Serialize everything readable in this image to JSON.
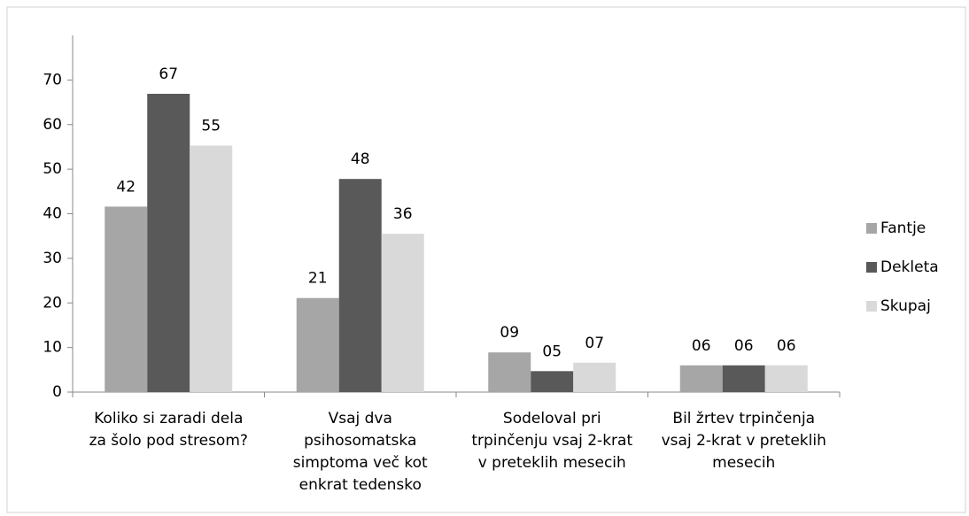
{
  "chart_data": {
    "type": "bar",
    "categories": [
      "Koliko si zaradi dela\nza šolo pod stresom?",
      "Vsaj dva\npsihosomatska\nsimptoma več kot\nenkrat tedensko",
      "Sodeloval pri\ntrpinčenju vsaj 2-krat\nv preteklih mesecih",
      "Bil žrtev trpinčenja\nvsaj 2-krat v preteklih\nmesecih"
    ],
    "series": [
      {
        "name": "Fantje",
        "color": "#a6a6a6",
        "values": [
          41.6,
          21.1,
          8.9,
          6.0
        ],
        "value_labels": [
          "42",
          "21",
          "09",
          "06"
        ]
      },
      {
        "name": "Dekleta",
        "color": "#595959",
        "values": [
          66.9,
          47.8,
          4.7,
          6.0
        ],
        "value_labels": [
          "67",
          "48",
          "05",
          "06"
        ]
      },
      {
        "name": "Skupaj",
        "color": "#d9d9d9",
        "values": [
          55.3,
          35.5,
          6.6,
          6.0
        ],
        "value_labels": [
          "55",
          "36",
          "07",
          "06"
        ]
      }
    ],
    "ylim": [
      0,
      80
    ],
    "yticks": [
      0,
      10,
      20,
      30,
      40,
      50,
      60,
      70
    ],
    "grid": false,
    "legend": "right"
  }
}
